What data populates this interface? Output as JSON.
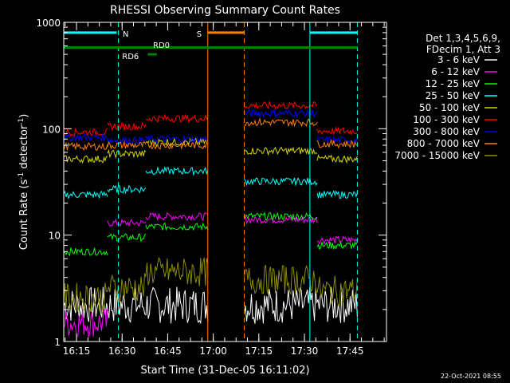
{
  "chart_data": {
    "type": "line",
    "title": "RHESSI Observing Summary Count Rates",
    "xlabel": "Start Time (31-Dec-05 16:11:02)",
    "ylabel": "Count Rate (s",
    "ylabel_sup1": "-1",
    "ylabel_mid": " detector",
    "ylabel_sup2": "-1",
    "ylabel_end": ")",
    "yscale": "log",
    "xlim": [
      16.18,
      17.95
    ],
    "ylim": [
      1,
      1000
    ],
    "x_ticks": [
      {
        "v": 16.25,
        "label": "16:15"
      },
      {
        "v": 16.5,
        "label": "16:30"
      },
      {
        "v": 16.75,
        "label": "16:45"
      },
      {
        "v": 17.0,
        "label": "17:00"
      },
      {
        "v": 17.25,
        "label": "17:15"
      },
      {
        "v": 17.5,
        "label": "17:30"
      },
      {
        "v": 17.75,
        "label": "17:45"
      }
    ],
    "y_ticks": [
      {
        "v": 1,
        "label": "1"
      },
      {
        "v": 10,
        "label": "10"
      },
      {
        "v": 100,
        "label": "100"
      },
      {
        "v": 1000,
        "label": "1000"
      }
    ],
    "legend_header": [
      "Det 1,3,4,5,6,9,",
      "FDecim 1, Att 3"
    ],
    "legend_position": "right",
    "series": [
      {
        "name": "3 - 6 keV",
        "color": "#ffffff",
        "level": 2.2,
        "segments": [
          [
            16.18,
            16.97,
            2.2
          ],
          [
            17.17,
            17.79,
            2.2
          ]
        ],
        "noisy": true
      },
      {
        "name": "6 - 12 keV",
        "color": "#ff00ff",
        "segments": [
          [
            16.18,
            16.42,
            1.5
          ],
          [
            16.42,
            16.63,
            13
          ],
          [
            16.63,
            16.97,
            15
          ],
          [
            17.17,
            17.57,
            14
          ],
          [
            17.57,
            17.79,
            9
          ]
        ]
      },
      {
        "name": "12 - 25 keV",
        "color": "#00ff00",
        "segments": [
          [
            16.18,
            16.42,
            7
          ],
          [
            16.42,
            16.63,
            9.5
          ],
          [
            16.63,
            16.97,
            12
          ],
          [
            17.17,
            17.57,
            15
          ],
          [
            17.57,
            17.79,
            8
          ]
        ]
      },
      {
        "name": "25 - 50 keV",
        "color": "#00ffff",
        "segments": [
          [
            16.18,
            16.42,
            24
          ],
          [
            16.42,
            16.63,
            27
          ],
          [
            16.63,
            16.97,
            40
          ],
          [
            17.17,
            17.57,
            32
          ],
          [
            17.57,
            17.79,
            24
          ]
        ]
      },
      {
        "name": "50 - 100 keV",
        "color": "#d4d400",
        "segments": [
          [
            16.18,
            16.42,
            52
          ],
          [
            16.42,
            16.63,
            58
          ],
          [
            16.63,
            16.97,
            75
          ],
          [
            17.17,
            17.57,
            62
          ],
          [
            17.57,
            17.79,
            52
          ]
        ]
      },
      {
        "name": "100 - 300 keV",
        "color": "#ff0000",
        "segments": [
          [
            16.18,
            16.42,
            93
          ],
          [
            16.42,
            16.63,
            105
          ],
          [
            16.63,
            16.97,
            125
          ],
          [
            17.17,
            17.57,
            165
          ],
          [
            17.57,
            17.79,
            95
          ]
        ]
      },
      {
        "name": "300 - 800 keV",
        "color": "#0000ff",
        "segments": [
          [
            16.18,
            16.42,
            83
          ],
          [
            16.42,
            16.63,
            78
          ],
          [
            16.63,
            16.97,
            80
          ],
          [
            17.17,
            17.57,
            140
          ],
          [
            17.57,
            17.79,
            78
          ]
        ]
      },
      {
        "name": "800 - 7000 keV",
        "color": "#ff8000",
        "segments": [
          [
            16.18,
            16.42,
            68
          ],
          [
            16.42,
            16.63,
            70
          ],
          [
            16.63,
            16.97,
            70
          ],
          [
            17.17,
            17.57,
            115
          ],
          [
            17.57,
            17.79,
            72
          ]
        ]
      },
      {
        "name": "7000 - 15000 keV",
        "color": "#8c8c00",
        "segments": [
          [
            16.18,
            16.42,
            2.6
          ],
          [
            16.42,
            16.63,
            3.2
          ],
          [
            16.63,
            16.97,
            4.5
          ],
          [
            17.17,
            17.57,
            3.8
          ],
          [
            17.57,
            17.79,
            3.0
          ]
        ]
      }
    ],
    "bars": [
      {
        "label": "N",
        "color": "#00ffff",
        "y": 800,
        "x": [
          16.18,
          16.47
        ]
      },
      {
        "label": "",
        "color": "#00ffff",
        "y": 800,
        "x": [
          17.53,
          17.79
        ]
      },
      {
        "label": "S",
        "color": "#ff8000",
        "y": 800,
        "x": [
          16.97,
          17.17
        ]
      },
      {
        "label": "",
        "color": "#008000",
        "y": 580,
        "x": [
          16.18,
          17.79
        ]
      },
      {
        "label": "RD6",
        "color": "#008000",
        "y": 500,
        "x": [
          16.64,
          16.69
        ]
      }
    ],
    "annotations": [
      {
        "text": "RD0",
        "color": "#008000"
      }
    ],
    "vlines": [
      {
        "x": 16.18,
        "color": "#00ffff",
        "dash": false
      },
      {
        "x": 16.48,
        "color": "#00ffff",
        "dash": true
      },
      {
        "x": 16.97,
        "color": "#ff8000",
        "dash": false
      },
      {
        "x": 17.17,
        "color": "#ff8000",
        "dash": true
      },
      {
        "x": 17.53,
        "color": "#00ffff",
        "dash": false
      },
      {
        "x": 17.79,
        "color": "#00ffff",
        "dash": true
      }
    ]
  },
  "footer": {
    "timestamp": "22-Oct-2021 08:55"
  }
}
